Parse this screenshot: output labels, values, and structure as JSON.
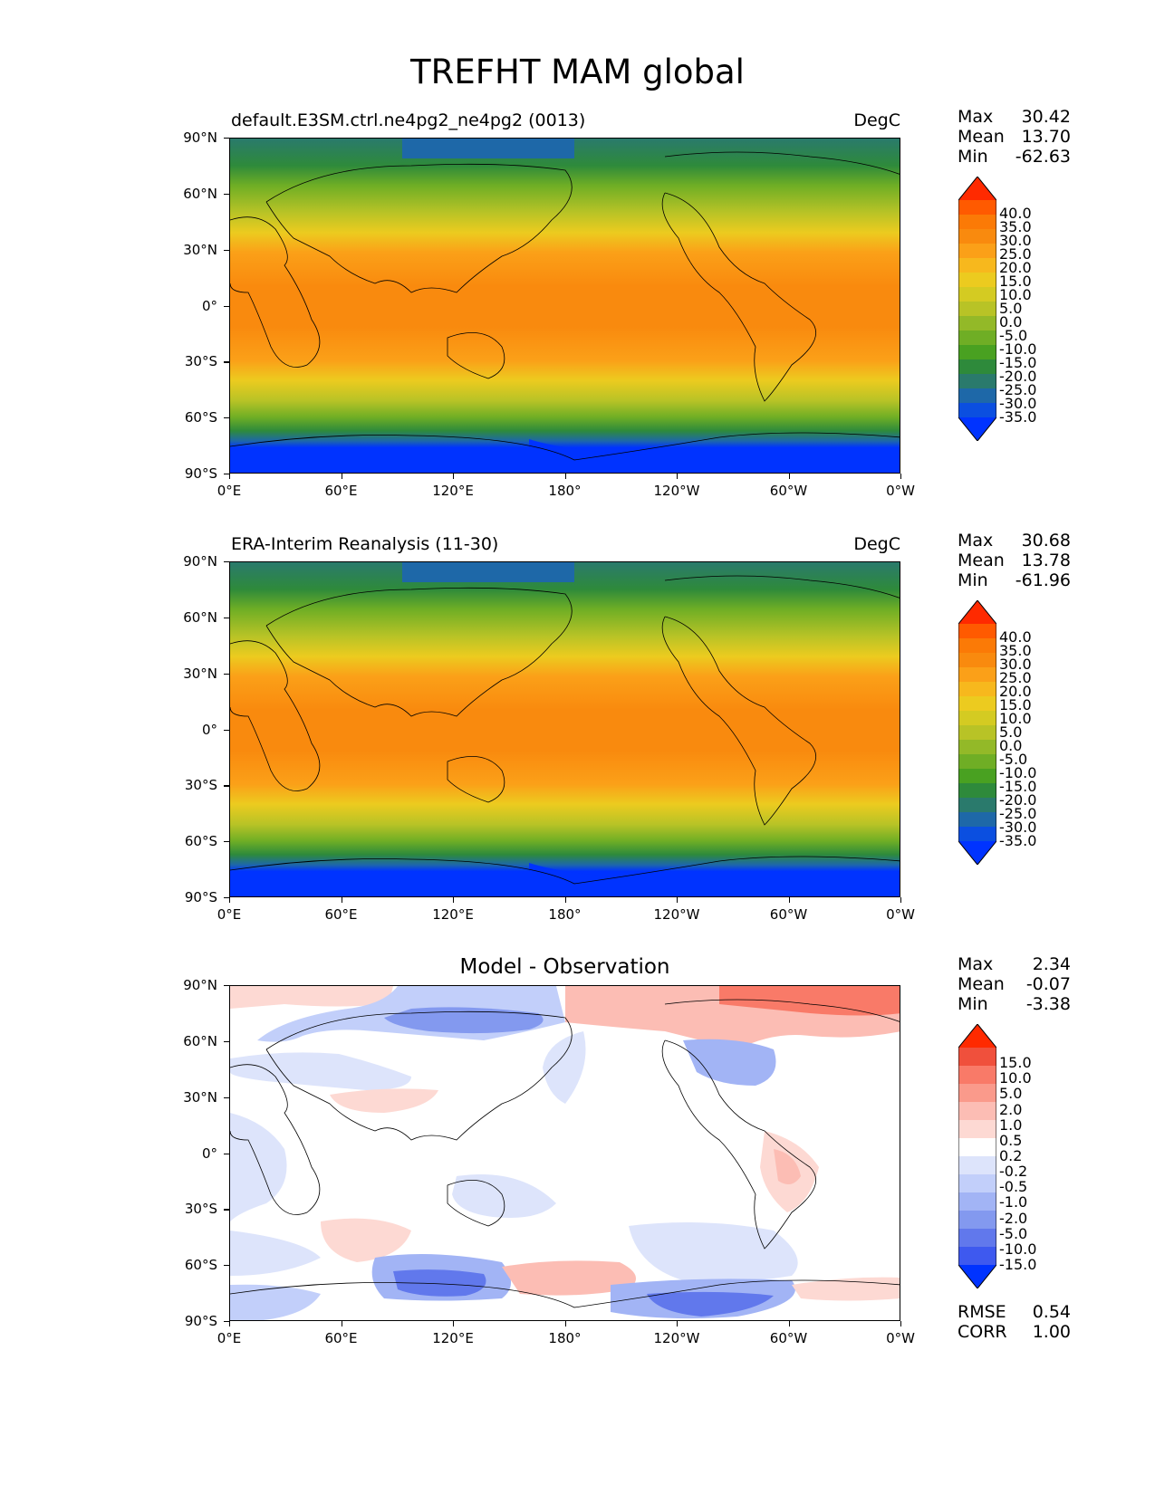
{
  "figure": {
    "title": "TREFHT MAM global"
  },
  "axes": {
    "lat_labels": [
      "90°N",
      "60°N",
      "30°N",
      "0°",
      "30°S",
      "60°S",
      "90°S"
    ],
    "lon_labels": [
      "0°E",
      "60°E",
      "120°E",
      "180°",
      "120°W",
      "60°W",
      "0°W"
    ]
  },
  "panels": [
    {
      "id": "model",
      "title": "default.E3SM.ctrl.ne4pg2_ne4pg2 (0013)",
      "units": "DegC",
      "stats": {
        "max_label": "Max",
        "max": "30.42",
        "mean_label": "Mean",
        "mean": "13.70",
        "min_label": "Min",
        "min": "-62.63"
      },
      "colorbar_labels": [
        "40.0",
        "35.0",
        "30.0",
        "25.0",
        "20.0",
        "15.0",
        "10.0",
        "5.0",
        "0.0",
        "-5.0",
        "-10.0",
        "-15.0",
        "-20.0",
        "-25.0",
        "-30.0",
        "-35.0"
      ]
    },
    {
      "id": "obs",
      "title": "ERA-Interim Reanalysis (11-30)",
      "units": "DegC",
      "stats": {
        "max_label": "Max",
        "max": "30.68",
        "mean_label": "Mean",
        "mean": "13.78",
        "min_label": "Min",
        "min": "-61.96"
      },
      "colorbar_labels": [
        "40.0",
        "35.0",
        "30.0",
        "25.0",
        "20.0",
        "15.0",
        "10.0",
        "5.0",
        "0.0",
        "-5.0",
        "-10.0",
        "-15.0",
        "-20.0",
        "-25.0",
        "-30.0",
        "-35.0"
      ]
    },
    {
      "id": "diff",
      "title": "Model - Observation",
      "units": "",
      "stats": {
        "max_label": "Max",
        "max": "2.34",
        "mean_label": "Mean",
        "mean": "-0.07",
        "min_label": "Min",
        "min": "-3.38"
      },
      "colorbar_labels": [
        "15.0",
        "10.0",
        "5.0",
        "2.0",
        "1.0",
        "0.5",
        "0.2",
        "-0.2",
        "-0.5",
        "-1.0",
        "-2.0",
        "-5.0",
        "-10.0",
        "-15.0"
      ],
      "metrics": {
        "rmse_label": "RMSE",
        "rmse": "0.54",
        "corr_label": "CORR",
        "corr": "1.00"
      }
    }
  ],
  "colors": {
    "temp_scale": [
      "#ff2a00",
      "#ff5a00",
      "#fb7a06",
      "#f98a0e",
      "#fba018",
      "#f7b81d",
      "#eccb1f",
      "#d4cb22",
      "#b8c326",
      "#93b928",
      "#6fae25",
      "#49a121",
      "#2e8a3b",
      "#2a7a6c",
      "#1e68a8",
      "#0b4fe0",
      "#0033ff"
    ],
    "diff_scale": [
      "#ff2a00",
      "#f0503c",
      "#f97a68",
      "#fa9a8b",
      "#fcbdb4",
      "#fdd9d3",
      "#ffffff",
      "#dde4fb",
      "#c2cffa",
      "#a2b4f5",
      "#8399ef",
      "#6178ec",
      "#3e59ef",
      "#0033ff"
    ]
  }
}
